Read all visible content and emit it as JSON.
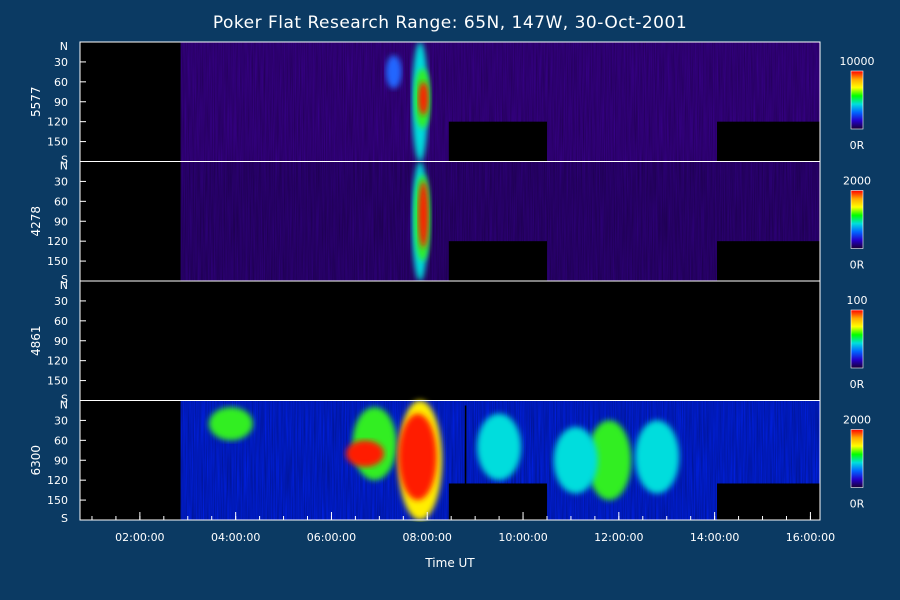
{
  "chart_data": {
    "type": "heatmap",
    "title": "Poker Flat Research Range: 65N, 147W, 30-Oct-2001",
    "xlabel": "Time UT",
    "x_ticks": [
      "02:00:00",
      "04:00:00",
      "06:00:00",
      "08:00:00",
      "10:00:00",
      "12:00:00",
      "14:00:00",
      "16:00:00"
    ],
    "x_tick_hours": [
      2,
      4,
      6,
      8,
      10,
      12,
      14,
      16
    ],
    "xlim_hours": [
      0.75,
      16.2
    ],
    "ylim_deg": [
      0,
      180
    ],
    "y_ticks": [
      "N",
      "30",
      "60",
      "90",
      "120",
      "150",
      "S"
    ],
    "y_tick_values": [
      0,
      30,
      60,
      90,
      120,
      150,
      180
    ],
    "data_start_hour": 2.85,
    "colorbar_colors": [
      "#ff0000",
      "#ffaa00",
      "#ffff00",
      "#00ff00",
      "#00dddd",
      "#0066ff",
      "#2200cc",
      "#1a0033"
    ],
    "series": [
      {
        "name": "5577",
        "color_max": "10000",
        "color_min": "0R",
        "background": "#3a0090",
        "gaps": [
          [
            8.45,
            10.5,
            120,
            180
          ],
          [
            14.05,
            16.2,
            120,
            180
          ]
        ],
        "blobs": [
          {
            "hour": 7.85,
            "deg_from": 0,
            "deg_to": 180,
            "level": "cyan"
          },
          {
            "hour": 7.9,
            "deg_from": 40,
            "deg_to": 130,
            "level": "green"
          },
          {
            "hour": 7.92,
            "deg_from": 60,
            "deg_to": 110,
            "level": "red"
          },
          {
            "hour": 7.3,
            "deg_from": 20,
            "deg_to": 70,
            "level": "blue"
          }
        ]
      },
      {
        "name": "4278",
        "color_max": "2000",
        "color_min": "0R",
        "background": "#300080",
        "gaps": [
          [
            8.45,
            10.5,
            120,
            180
          ],
          [
            14.05,
            16.2,
            120,
            180
          ]
        ],
        "blobs": [
          {
            "hour": 7.85,
            "deg_from": 0,
            "deg_to": 180,
            "level": "cyan"
          },
          {
            "hour": 7.9,
            "deg_from": 20,
            "deg_to": 150,
            "level": "green"
          },
          {
            "hour": 7.92,
            "deg_from": 30,
            "deg_to": 130,
            "level": "red"
          }
        ]
      },
      {
        "name": "4861",
        "color_max": "100",
        "color_min": "0R",
        "background": "#000000",
        "gaps": [
          [
            8.45,
            10.5,
            120,
            180
          ],
          [
            14.05,
            16.2,
            135,
            180
          ]
        ],
        "blobs": []
      },
      {
        "name": "6300",
        "color_max": "2000",
        "color_min": "0R",
        "background": "#0022ee",
        "gaps": [
          [
            8.45,
            10.5,
            125,
            180
          ],
          [
            14.05,
            16.2,
            125,
            180
          ]
        ],
        "blobs": [
          {
            "hour": 3.9,
            "deg_from": 10,
            "deg_to": 60,
            "level": "green"
          },
          {
            "hour": 6.9,
            "deg_from": 10,
            "deg_to": 120,
            "level": "green"
          },
          {
            "hour": 6.7,
            "deg_from": 60,
            "deg_to": 100,
            "level": "red"
          },
          {
            "hour": 7.85,
            "deg_from": 0,
            "deg_to": 180,
            "level": "yellow"
          },
          {
            "hour": 7.8,
            "deg_from": 20,
            "deg_to": 150,
            "level": "red"
          },
          {
            "hour": 11.8,
            "deg_from": 30,
            "deg_to": 150,
            "level": "green"
          },
          {
            "hour": 11.1,
            "deg_from": 40,
            "deg_to": 140,
            "level": "cyan"
          },
          {
            "hour": 12.8,
            "deg_from": 30,
            "deg_to": 140,
            "level": "cyan"
          },
          {
            "hour": 9.5,
            "deg_from": 20,
            "deg_to": 120,
            "level": "cyan"
          }
        ]
      }
    ]
  }
}
